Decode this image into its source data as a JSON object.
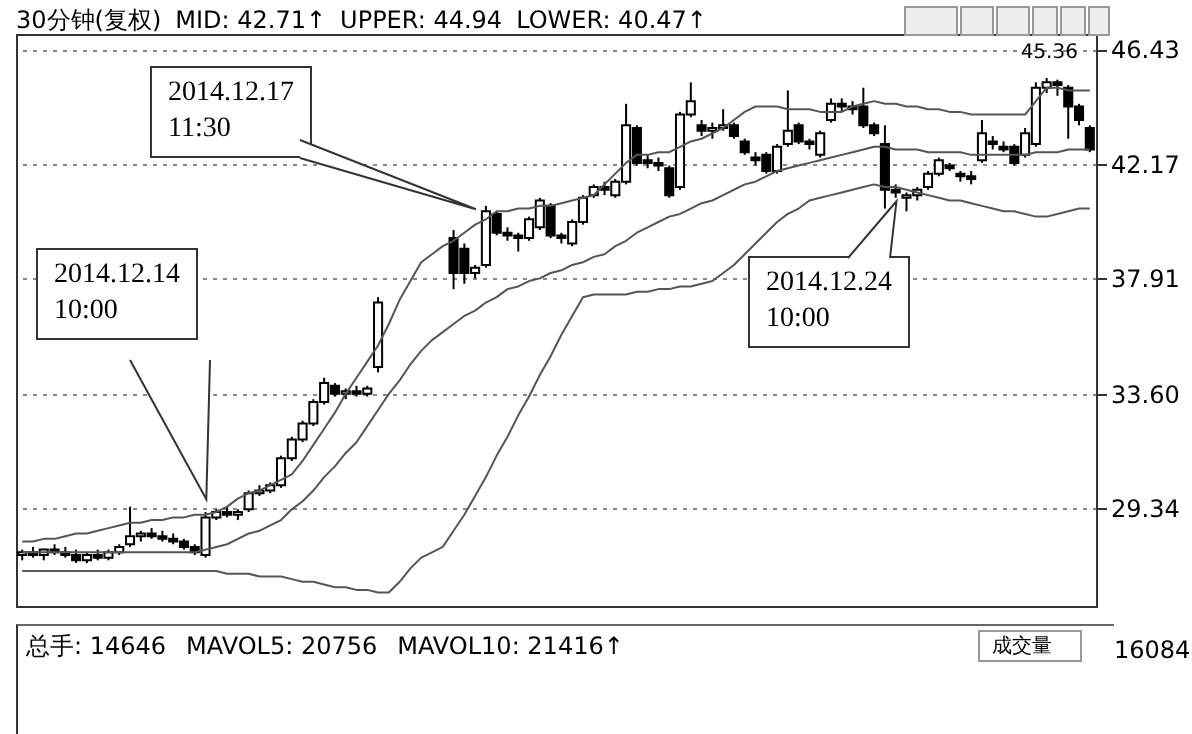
{
  "chart_data": {
    "type": "candlestick",
    "categories": [
      null,
      null,
      null,
      null,
      null,
      null,
      null,
      null,
      null,
      null,
      null,
      null,
      null,
      null,
      null,
      null,
      null,
      null,
      null,
      null,
      null,
      null,
      null,
      null,
      null,
      null,
      null,
      null,
      null,
      null,
      null,
      null,
      null,
      null,
      null,
      null,
      null,
      null,
      null,
      null,
      null,
      null,
      null,
      null,
      null,
      null,
      null,
      null,
      null,
      null,
      null,
      null,
      null,
      null,
      null,
      null,
      null,
      null,
      null,
      null,
      null,
      null,
      null,
      null,
      null,
      null,
      null,
      null,
      null,
      null,
      null,
      null,
      null,
      null,
      null,
      null,
      null,
      null,
      null,
      null,
      null,
      null,
      null,
      null,
      null,
      null,
      null,
      null,
      null,
      null,
      null,
      null,
      null,
      null,
      null,
      null,
      null,
      null,
      null,
      null
    ],
    "ohlc": [
      [
        27.6,
        27.8,
        27.4,
        27.7
      ],
      [
        27.7,
        27.9,
        27.5,
        27.6
      ],
      [
        27.6,
        27.8,
        27.4,
        27.8
      ],
      [
        27.8,
        28.0,
        27.6,
        27.7
      ],
      [
        27.7,
        27.9,
        27.5,
        27.6
      ],
      [
        27.6,
        27.8,
        27.3,
        27.4
      ],
      [
        27.4,
        27.7,
        27.3,
        27.6
      ],
      [
        27.6,
        27.8,
        27.4,
        27.5
      ],
      [
        27.5,
        27.8,
        27.4,
        27.7
      ],
      [
        27.7,
        28.0,
        27.6,
        27.9
      ],
      [
        28.0,
        29.4,
        27.9,
        28.3
      ],
      [
        28.3,
        28.5,
        28.1,
        28.4
      ],
      [
        28.4,
        28.6,
        28.2,
        28.3
      ],
      [
        28.3,
        28.5,
        28.1,
        28.2
      ],
      [
        28.2,
        28.4,
        28.0,
        28.1
      ],
      [
        28.1,
        28.2,
        27.8,
        27.9
      ],
      [
        27.9,
        28.0,
        27.6,
        27.7
      ],
      [
        27.6,
        29.2,
        27.5,
        29.0
      ],
      [
        29.0,
        29.3,
        28.9,
        29.2
      ],
      [
        29.2,
        29.4,
        29.0,
        29.1
      ],
      [
        29.1,
        29.3,
        28.9,
        29.2
      ],
      [
        29.3,
        30.0,
        29.2,
        29.9
      ],
      [
        29.9,
        30.2,
        29.8,
        30.0
      ],
      [
        30.0,
        30.3,
        29.9,
        30.2
      ],
      [
        30.2,
        31.3,
        30.1,
        31.2
      ],
      [
        31.2,
        32.0,
        31.1,
        31.9
      ],
      [
        31.9,
        32.6,
        31.8,
        32.5
      ],
      [
        32.5,
        33.4,
        32.4,
        33.3
      ],
      [
        33.3,
        34.2,
        33.2,
        34.0
      ],
      [
        33.9,
        34.0,
        33.5,
        33.6
      ],
      [
        33.6,
        33.8,
        33.4,
        33.7
      ],
      [
        33.7,
        33.9,
        33.5,
        33.6
      ],
      [
        33.6,
        33.9,
        33.5,
        33.8
      ],
      [
        34.6,
        37.2,
        34.4,
        37.0
      ],
      null,
      null,
      null,
      null,
      null,
      null,
      [
        39.4,
        39.7,
        37.5,
        38.1
      ],
      [
        39.0,
        39.2,
        37.7,
        38.1
      ],
      [
        38.1,
        38.4,
        37.9,
        38.3
      ],
      [
        38.4,
        40.6,
        38.3,
        40.4
      ],
      [
        40.3,
        40.4,
        39.5,
        39.6
      ],
      [
        39.6,
        39.8,
        39.3,
        39.5
      ],
      [
        39.5,
        39.6,
        38.9,
        39.4
      ],
      [
        39.4,
        40.2,
        39.3,
        40.1
      ],
      [
        39.8,
        40.9,
        39.7,
        40.8
      ],
      [
        40.6,
        40.7,
        39.4,
        39.5
      ],
      [
        39.5,
        39.6,
        39.2,
        39.4
      ],
      [
        39.2,
        40.1,
        39.1,
        40.0
      ],
      [
        40.0,
        41.0,
        39.9,
        40.9
      ],
      [
        41.0,
        41.4,
        40.9,
        41.3
      ],
      [
        41.3,
        41.5,
        41.0,
        41.2
      ],
      [
        41.0,
        41.6,
        40.9,
        41.5
      ],
      [
        41.5,
        44.4,
        41.4,
        43.6
      ],
      [
        43.5,
        43.6,
        42.1,
        42.2
      ],
      [
        42.3,
        42.5,
        42.0,
        42.2
      ],
      [
        42.2,
        42.4,
        41.9,
        42.1
      ],
      [
        42.0,
        42.1,
        40.9,
        41.0
      ],
      [
        41.3,
        44.1,
        41.2,
        44.0
      ],
      [
        44.0,
        45.2,
        43.9,
        44.5
      ],
      [
        43.6,
        43.8,
        43.2,
        43.4
      ],
      [
        43.4,
        43.7,
        43.1,
        43.5
      ],
      [
        43.5,
        44.2,
        43.4,
        43.6
      ],
      [
        43.6,
        43.7,
        43.1,
        43.2
      ],
      [
        43.0,
        43.1,
        42.5,
        42.6
      ],
      [
        42.4,
        42.6,
        42.1,
        42.3
      ],
      [
        42.5,
        42.6,
        41.8,
        41.9
      ],
      [
        41.9,
        42.9,
        41.8,
        42.8
      ],
      [
        42.9,
        44.9,
        42.8,
        43.4
      ],
      [
        43.6,
        43.7,
        42.9,
        43.0
      ],
      [
        43.0,
        43.1,
        42.7,
        42.9
      ],
      [
        42.5,
        43.4,
        42.4,
        43.3
      ],
      [
        43.8,
        44.6,
        43.7,
        44.4
      ],
      [
        44.4,
        44.6,
        44.1,
        44.3
      ],
      [
        44.3,
        44.5,
        44.0,
        44.2
      ],
      [
        44.3,
        45.0,
        43.5,
        43.6
      ],
      [
        43.6,
        43.7,
        43.2,
        43.3
      ],
      [
        42.9,
        43.6,
        40.5,
        41.2
      ],
      [
        41.2,
        41.4,
        40.9,
        41.1
      ],
      [
        40.9,
        41.1,
        40.4,
        41.0
      ],
      [
        41.0,
        41.3,
        40.8,
        41.2
      ],
      [
        41.3,
        41.9,
        41.2,
        41.8
      ],
      [
        41.8,
        42.4,
        41.7,
        42.3
      ],
      [
        42.1,
        42.2,
        41.9,
        42.0
      ],
      [
        41.8,
        41.9,
        41.5,
        41.7
      ],
      [
        41.7,
        41.9,
        41.4,
        41.6
      ],
      [
        42.3,
        43.8,
        42.2,
        43.3
      ],
      [
        43.0,
        43.2,
        42.7,
        42.9
      ],
      [
        42.8,
        43.0,
        42.6,
        42.7
      ],
      [
        42.8,
        42.9,
        42.1,
        42.2
      ],
      [
        42.5,
        43.5,
        42.4,
        43.3
      ],
      [
        42.9,
        45.2,
        42.8,
        45.0
      ],
      [
        45.0,
        45.36,
        44.8,
        45.2
      ],
      [
        45.2,
        45.3,
        44.7,
        45.1
      ],
      [
        45.0,
        45.1,
        43.1,
        44.3
      ],
      [
        44.3,
        44.4,
        43.6,
        43.8
      ],
      [
        43.5,
        43.6,
        42.6,
        42.7
      ]
    ],
    "series": [
      {
        "type": "line",
        "color": "#555555",
        "values": [
          27.7,
          27.7,
          27.7,
          27.7,
          27.7,
          27.7,
          27.7,
          27.7,
          27.7,
          27.7,
          27.7,
          27.7,
          27.7,
          27.7,
          27.7,
          27.7,
          27.7,
          27.8,
          27.9,
          28.0,
          28.2,
          28.4,
          28.5,
          28.7,
          28.9,
          29.3,
          29.6,
          30.0,
          30.5,
          30.9,
          31.4,
          31.8,
          32.4,
          33.0,
          33.6,
          34.1,
          34.7,
          35.2,
          35.6,
          35.9,
          36.2,
          36.5,
          36.7,
          37.0,
          37.2,
          37.5,
          37.6,
          37.8,
          37.9,
          38.1,
          38.2,
          38.4,
          38.5,
          38.7,
          38.8,
          39.1,
          39.3,
          39.6,
          39.8,
          40.0,
          40.2,
          40.3,
          40.5,
          40.7,
          40.8,
          41.0,
          41.2,
          41.4,
          41.5,
          41.7,
          41.9,
          42.0,
          42.1,
          42.2,
          42.3,
          42.4,
          42.5,
          42.6,
          42.7,
          42.8,
          42.8,
          42.7,
          42.7,
          42.7,
          42.6,
          42.6,
          42.6,
          42.6,
          42.5,
          42.5,
          42.5,
          42.5,
          42.5,
          42.5,
          42.6,
          42.6,
          42.6,
          42.7,
          42.7,
          42.7
        ]
      },
      {
        "type": "line",
        "color": "#555555",
        "values": [
          28.1,
          28.1,
          28.2,
          28.2,
          28.3,
          28.4,
          28.4,
          28.5,
          28.6,
          28.7,
          28.8,
          28.8,
          28.9,
          28.9,
          29.0,
          29.0,
          29.1,
          29.1,
          29.2,
          29.4,
          29.7,
          29.9,
          30.0,
          30.2,
          30.4,
          30.6,
          31.1,
          31.7,
          32.3,
          32.9,
          33.6,
          34.2,
          34.8,
          35.4,
          36.2,
          37.1,
          37.8,
          38.5,
          38.8,
          39.1,
          39.3,
          39.6,
          39.9,
          40.1,
          40.4,
          40.4,
          40.5,
          40.5,
          40.6,
          40.6,
          40.7,
          40.8,
          40.9,
          41.0,
          41.4,
          41.8,
          42.2,
          42.5,
          42.5,
          42.6,
          42.6,
          42.8,
          43.0,
          43.1,
          43.3,
          43.5,
          43.8,
          44.1,
          44.3,
          44.3,
          44.3,
          44.2,
          44.2,
          44.2,
          44.1,
          44.1,
          44.1,
          44.3,
          44.4,
          44.5,
          44.4,
          44.4,
          44.3,
          44.3,
          44.2,
          44.2,
          44.1,
          44.1,
          44.0,
          44.0,
          44.0,
          44.0,
          44.0,
          44.0,
          44.5,
          45.0,
          45.0,
          44.9,
          44.9,
          44.9
        ]
      },
      {
        "type": "line",
        "color": "#555555",
        "values": [
          27.0,
          27.0,
          27.0,
          27.0,
          27.0,
          27.0,
          27.0,
          27.0,
          27.0,
          27.0,
          27.0,
          27.0,
          27.0,
          27.0,
          27.0,
          27.0,
          27.0,
          27.0,
          27.0,
          26.9,
          26.9,
          26.9,
          26.8,
          26.8,
          26.8,
          26.7,
          26.6,
          26.6,
          26.5,
          26.4,
          26.4,
          26.3,
          26.3,
          26.2,
          26.2,
          26.6,
          27.1,
          27.5,
          27.7,
          27.9,
          28.5,
          29.1,
          29.8,
          30.5,
          31.3,
          32.0,
          32.8,
          33.5,
          34.3,
          35.0,
          35.8,
          36.5,
          37.2,
          37.3,
          37.3,
          37.3,
          37.3,
          37.4,
          37.4,
          37.5,
          37.5,
          37.6,
          37.6,
          37.7,
          37.8,
          38.1,
          38.4,
          38.8,
          39.2,
          39.6,
          40.0,
          40.3,
          40.5,
          40.8,
          40.9,
          41.0,
          41.1,
          41.2,
          41.3,
          41.4,
          41.3,
          41.3,
          41.2,
          41.1,
          41.0,
          40.9,
          40.8,
          40.8,
          40.7,
          40.6,
          40.5,
          40.4,
          40.4,
          40.3,
          40.2,
          40.2,
          40.3,
          40.4,
          40.5,
          40.5
        ]
      }
    ],
    "ylim": [
      25.7,
      47.0
    ],
    "yticks": [
      {
        "value": 29.34,
        "label": "29.34"
      },
      {
        "value": 33.6,
        "label": "33.60"
      },
      {
        "value": 37.91,
        "label": "37.91"
      },
      {
        "value": 42.17,
        "label": "42.17"
      },
      {
        "value": 46.43,
        "label": "46.43"
      }
    ],
    "grid": "y",
    "tick_labels": "y",
    "annotations": [
      "30分钟(复权)",
      "MID: 42.71↑",
      "UPPER: 44.94",
      "LOWER: 40.47↑",
      "2014.12.17 11:30",
      "2014.12.14 10:00",
      "2014.12.24 10:00",
      {
        "text": "45.36",
        "y": 45.36
      },
      "总手: 14646",
      "MAVOL5: 20756",
      "MAVOL10: 21416↑",
      "成交量",
      "16084"
    ]
  }
}
